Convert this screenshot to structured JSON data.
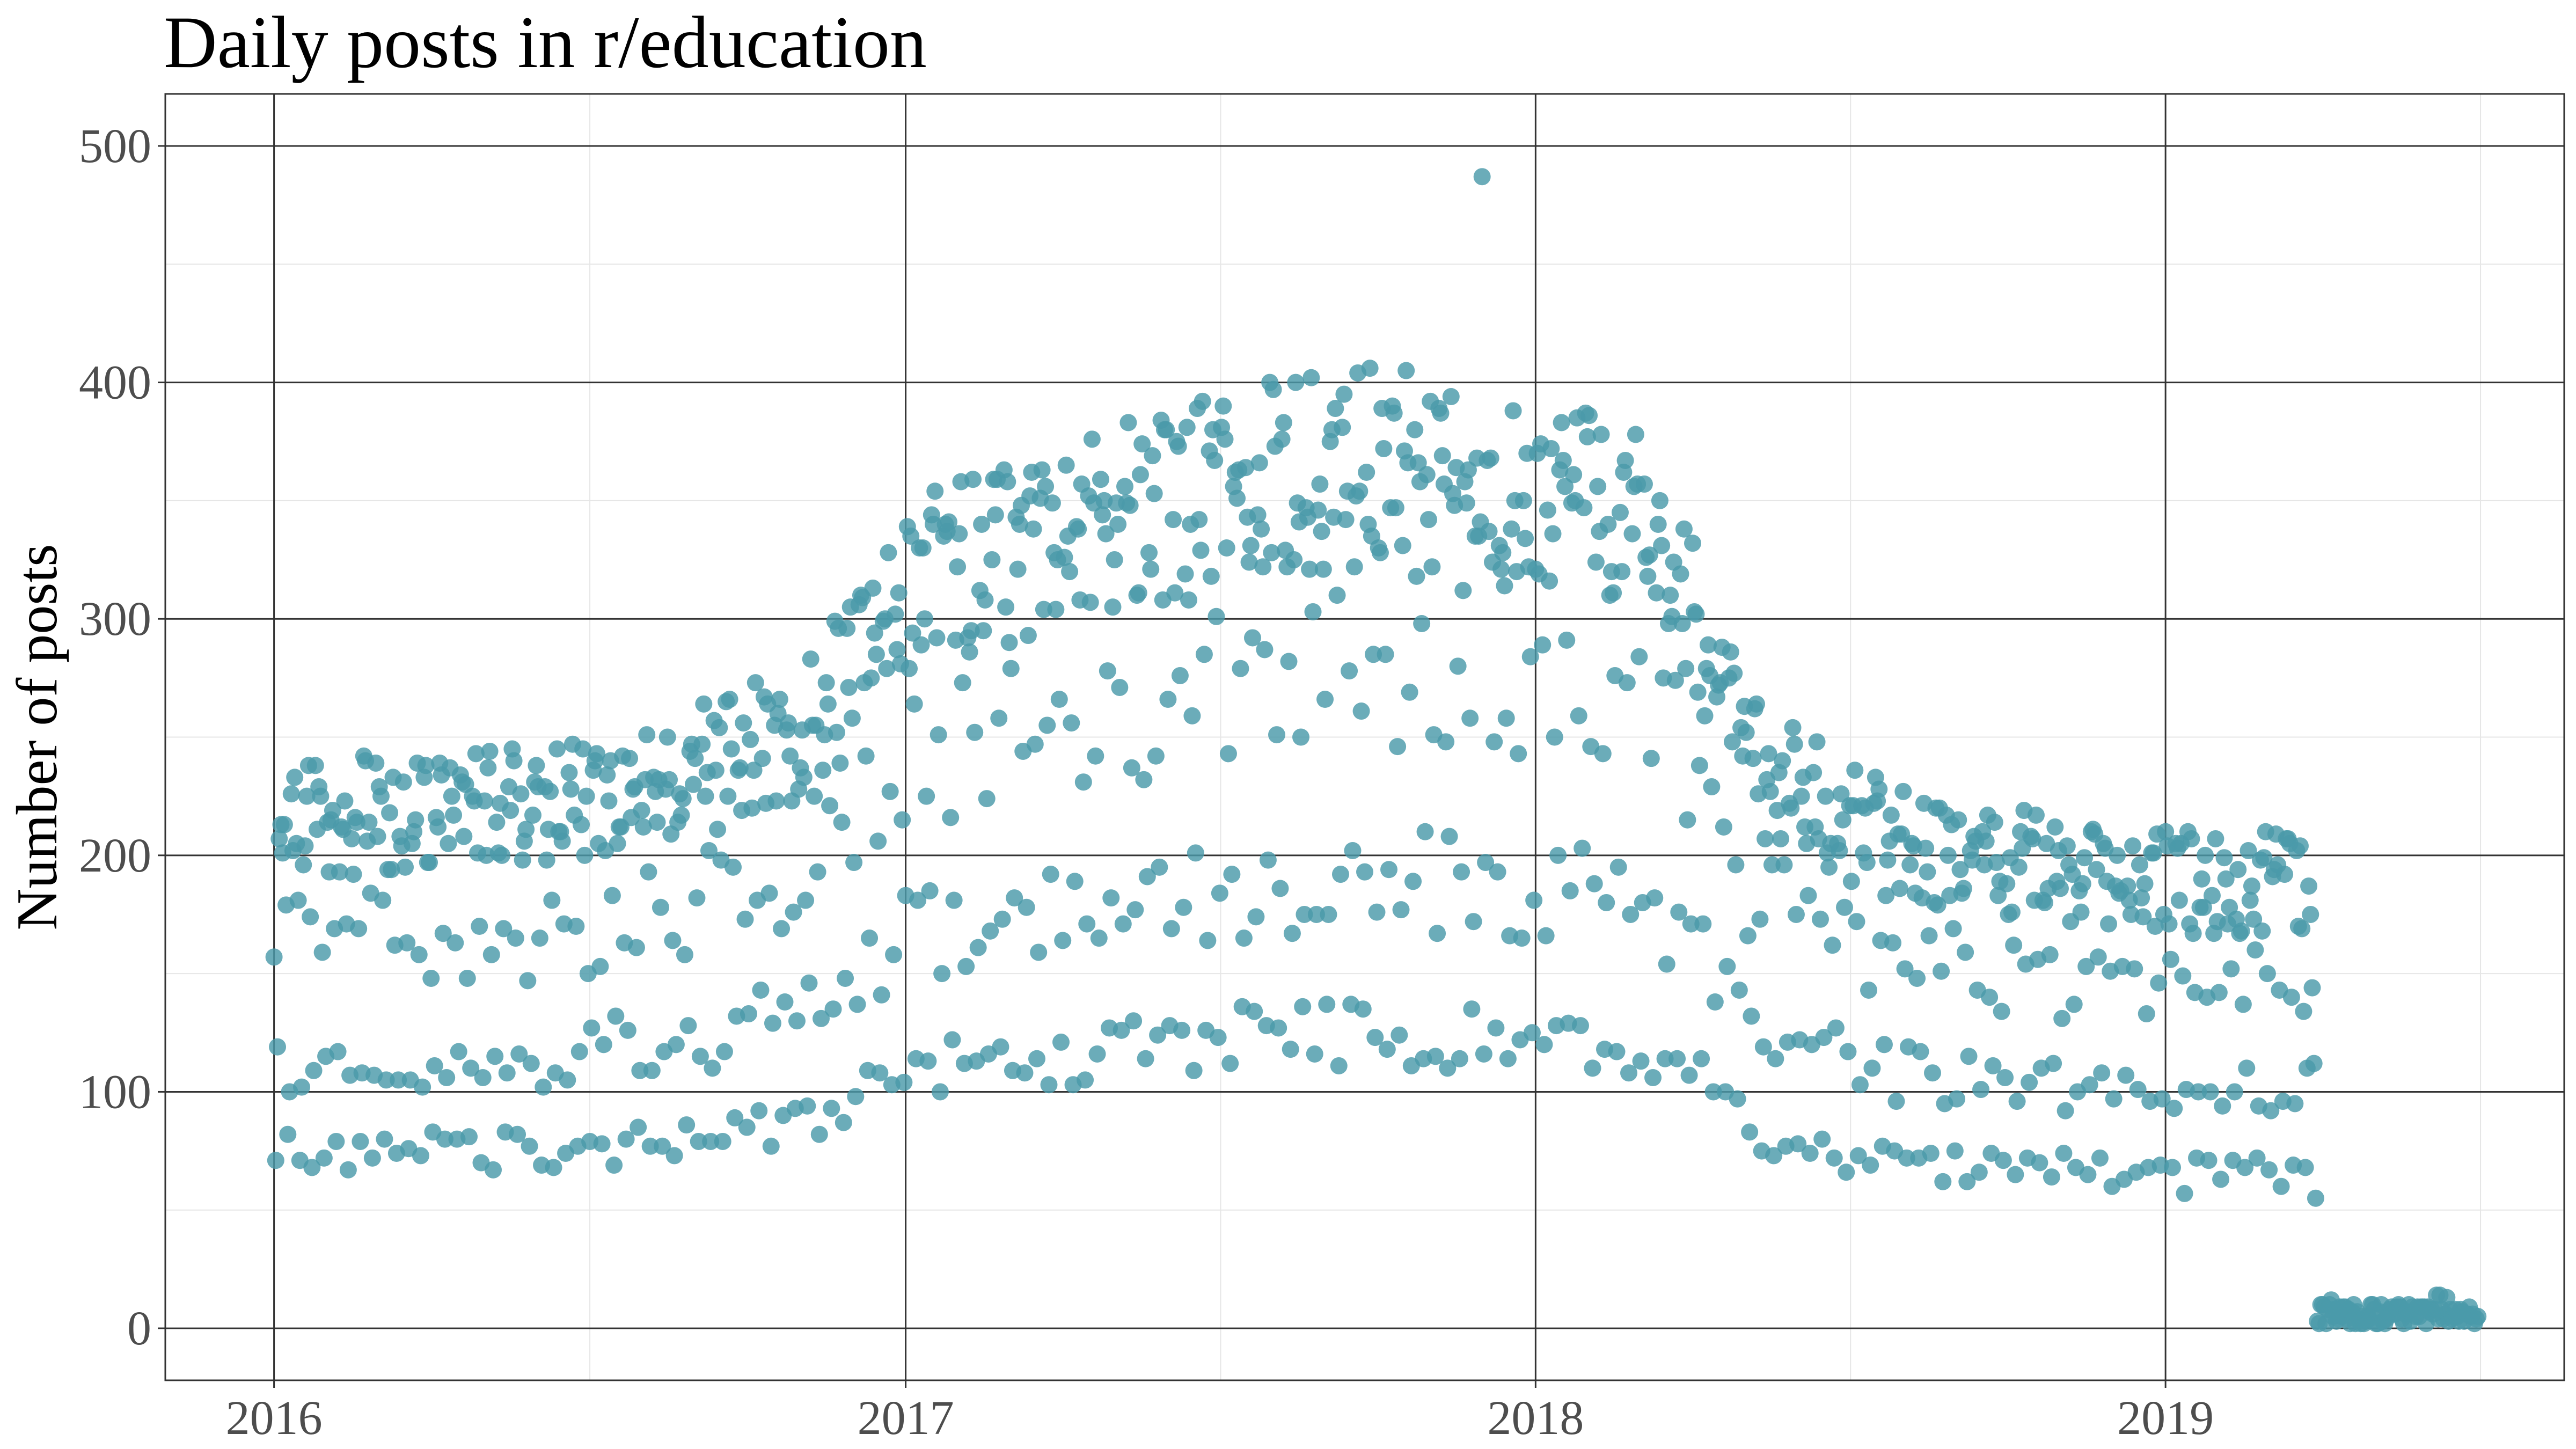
{
  "chart_data": {
    "type": "scatter",
    "title": "Daily posts in r/education",
    "xlabel": "",
    "ylabel": "Number of posts",
    "x_axis_type": "date",
    "xlim": [
      "2015-10-30",
      "2019-08-20"
    ],
    "ylim": [
      -22,
      522
    ],
    "x_ticks": [
      {
        "label": "2016",
        "value": "2016-01-01"
      },
      {
        "label": "2017",
        "value": "2017-01-01"
      },
      {
        "label": "2018",
        "value": "2018-01-01"
      },
      {
        "label": "2019",
        "value": "2019-01-01"
      }
    ],
    "y_ticks": [
      0,
      100,
      200,
      300,
      400,
      500
    ],
    "grid": true,
    "legend": "none",
    "point_color": "#4a9aaa",
    "frame_color": "#333333",
    "major_grid_color": "#333333",
    "minor_grid_color": "#e6e6e6",
    "x_range": [
      "2016-01-01",
      "2019-07-01"
    ],
    "notes": "daily post counts, one point per day, estimated from chart"
  }
}
